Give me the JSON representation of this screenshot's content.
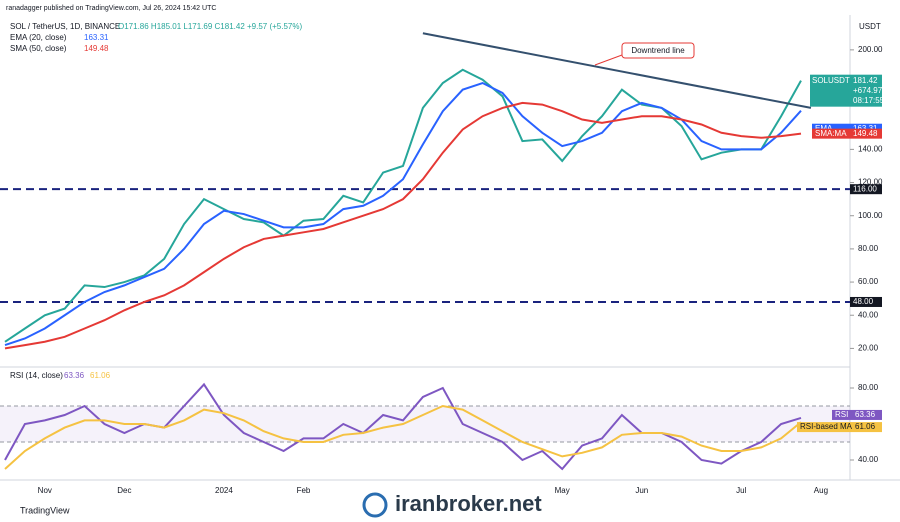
{
  "header": "ranadagger published on TradingView.com, Jul 26, 2024 15:42 UTC",
  "footer": "TradingView",
  "watermark": "iranbroker.net",
  "chart_data": {
    "type": "line",
    "title": "SOL / TetherUS, 1D, BINANCE",
    "ohlc_text": "O171.86 H185.01 L171.69 C181.42 +9.57 (+5.57%)",
    "y_unit": "USDT",
    "categories": [
      null,
      null,
      "Nov",
      null,
      null,
      null,
      "Dec",
      null,
      null,
      null,
      null,
      "2024",
      null,
      null,
      null,
      "Feb",
      null,
      null,
      null,
      null,
      null,
      null,
      null,
      null,
      null,
      null,
      null,
      null,
      "May",
      null,
      null,
      null,
      "Jun",
      null,
      null,
      null,
      null,
      "Jul",
      null,
      null,
      null,
      "Aug"
    ],
    "ylim": [
      10,
      218
    ],
    "yticks": [
      {
        "value": 20,
        "label": "20.00"
      },
      {
        "value": 40,
        "label": "40.00"
      },
      {
        "value": 60,
        "label": "60.00"
      },
      {
        "value": 80,
        "label": "80.00"
      },
      {
        "value": 100,
        "label": "100.00"
      },
      {
        "value": 120,
        "label": "120.00"
      },
      {
        "value": 140,
        "label": "140.00"
      },
      {
        "value": 200,
        "label": "200.00"
      }
    ],
    "series": [
      {
        "badge": "SOLUSDT",
        "color": "#26a69a",
        "change": "+674.97%",
        "countdown": "08:17:55",
        "values": [
          24,
          32,
          40,
          44,
          58,
          57,
          60,
          64,
          74,
          95,
          110,
          104,
          98,
          96,
          88,
          97,
          98,
          112,
          108,
          126,
          130,
          165,
          180,
          188,
          182,
          172,
          145,
          146,
          133,
          148,
          160,
          176,
          167,
          165,
          154,
          134,
          138,
          140,
          140,
          160,
          181.42,
          null
        ]
      },
      {
        "name": "EMA (20, close)",
        "badge": "EMA",
        "color": "#2962ff",
        "values": [
          22,
          26,
          32,
          40,
          48,
          54,
          58,
          63,
          68,
          80,
          95,
          103,
          101,
          97,
          93,
          93,
          95,
          104,
          106,
          112,
          122,
          143,
          163,
          176,
          180,
          174,
          160,
          150,
          142,
          145,
          150,
          163,
          168,
          165,
          158,
          145,
          140,
          140,
          140,
          150,
          163.31,
          null
        ]
      },
      {
        "name": "SMA (50, close)",
        "badge": "SMA:MA",
        "color": "#e53935",
        "values": [
          20,
          22,
          24,
          27,
          32,
          37,
          43,
          48,
          52,
          58,
          66,
          74,
          81,
          86,
          88,
          90,
          92,
          96,
          100,
          104,
          110,
          122,
          138,
          152,
          160,
          165,
          168,
          167,
          163,
          158,
          156,
          158,
          160,
          160,
          158,
          155,
          150,
          148,
          147,
          148,
          149.48,
          null
        ]
      }
    ],
    "hlines": [
      {
        "value": 116,
        "label": "116.00"
      },
      {
        "value": 48,
        "label": "48.00"
      }
    ],
    "trendline": {
      "label": "Downtrend line",
      "values": [
        210,
        165
      ],
      "color": "#34506e"
    },
    "rsi": {
      "title": "RSI (14, close)",
      "ylim": [
        30,
        90
      ],
      "yticks": [
        {
          "value": 40,
          "label": "40.00"
        },
        {
          "value": 80,
          "label": "80.00"
        }
      ],
      "bands": [
        70,
        50
      ],
      "series": [
        {
          "name": "RSI",
          "color": "#7e57c2",
          "values": [
            40,
            60,
            62,
            65,
            70,
            60,
            55,
            60,
            58,
            70,
            82,
            65,
            55,
            50,
            45,
            52,
            52,
            60,
            55,
            65,
            62,
            75,
            80,
            60,
            55,
            50,
            40,
            45,
            35,
            48,
            52,
            65,
            55,
            55,
            50,
            40,
            38,
            45,
            50,
            60,
            63.36,
            null
          ]
        },
        {
          "name": "RSI-based MA",
          "color": "#f5c242",
          "values": [
            35,
            45,
            52,
            58,
            62,
            62,
            60,
            60,
            58,
            62,
            68,
            66,
            62,
            56,
            52,
            50,
            50,
            54,
            55,
            58,
            60,
            65,
            70,
            68,
            62,
            56,
            50,
            46,
            42,
            44,
            47,
            54,
            55,
            55,
            53,
            48,
            45,
            45,
            47,
            52,
            61.06,
            null
          ]
        }
      ]
    }
  }
}
